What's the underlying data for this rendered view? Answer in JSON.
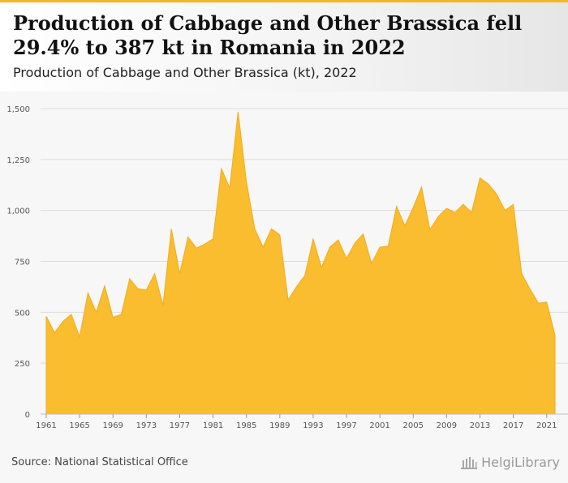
{
  "header": {
    "title": "Production of Cabbage and Other Brassica fell 29.4% to 387 kt in Romania in 2022",
    "subtitle": "Production of Cabbage and Other Brassica (kt), 2022"
  },
  "footer": {
    "source": "Source: National Statistical Office",
    "brand": "HelgiLibrary"
  },
  "colors": {
    "accent": "#f5b52a",
    "area_fill": "#f9bd2f",
    "area_stroke": "#f1ad1b",
    "grid": "#dcdcdc"
  },
  "chart_data": {
    "type": "area",
    "x": [
      1961,
      1962,
      1963,
      1964,
      1965,
      1966,
      1967,
      1968,
      1969,
      1970,
      1971,
      1972,
      1973,
      1974,
      1975,
      1976,
      1977,
      1978,
      1979,
      1980,
      1981,
      1982,
      1983,
      1984,
      1985,
      1986,
      1987,
      1988,
      1989,
      1990,
      1991,
      1992,
      1993,
      1994,
      1995,
      1996,
      1997,
      1998,
      1999,
      2000,
      2001,
      2002,
      2003,
      2004,
      2005,
      2006,
      2007,
      2008,
      2009,
      2010,
      2011,
      2012,
      2013,
      2014,
      2015,
      2016,
      2017,
      2018,
      2019,
      2020,
      2021,
      2022
    ],
    "series": [
      {
        "values": [
          480,
          400,
          455,
          490,
          380,
          595,
          500,
          630,
          475,
          490,
          665,
          615,
          610,
          690,
          535,
          910,
          690,
          870,
          815,
          835,
          860,
          1205,
          1110,
          1485,
          1140,
          910,
          820,
          910,
          880,
          560,
          625,
          680,
          860,
          720,
          820,
          855,
          765,
          840,
          885,
          740,
          820,
          825,
          1020,
          925,
          1015,
          1115,
          905,
          970,
          1010,
          990,
          1030,
          990,
          1160,
          1130,
          1080,
          1000,
          1030,
          690,
          615,
          545,
          550,
          387
        ]
      }
    ],
    "xticks": [
      1961,
      1965,
      1969,
      1973,
      1977,
      1981,
      1985,
      1989,
      1993,
      1997,
      2001,
      2005,
      2009,
      2013,
      2017,
      2021
    ],
    "yticks": [
      0,
      250,
      500,
      750,
      1000,
      1250,
      1500
    ],
    "ytick_labels": [
      "0",
      "250",
      "500",
      "750",
      "1,000",
      "1,250",
      "1,500"
    ],
    "xlim": [
      1961,
      2022
    ],
    "ylim": [
      0,
      1500
    ],
    "xlabel": "",
    "ylabel": "",
    "grid": "horizontal",
    "legend": "none"
  }
}
